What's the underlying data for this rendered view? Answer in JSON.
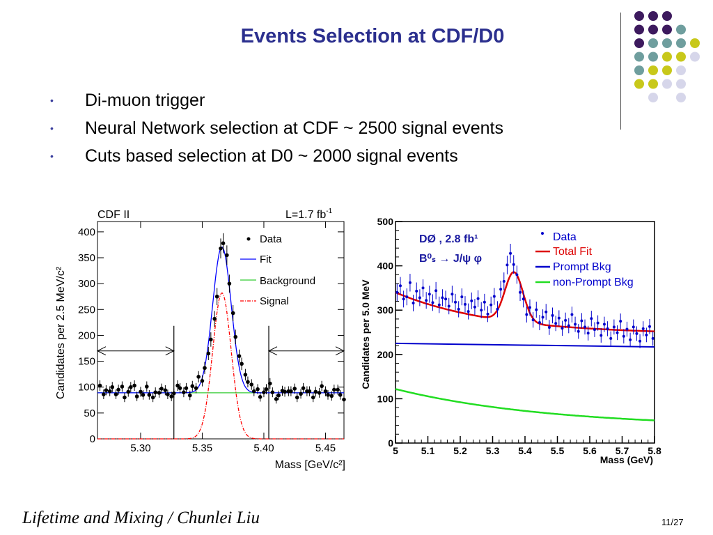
{
  "slide": {
    "title": "Events Selection at CDF/D0",
    "bullets": [
      "Di-muon trigger",
      "Neural Network selection at CDF  ~ 2500 signal events",
      "Cuts based selection at D0  ~  2000 signal events"
    ],
    "footer_left": "Lifetime and Mixing / Chunlei Liu",
    "footer_right": "11/27",
    "decor_colors": [
      "#3d1a5e",
      "#6f9e9e",
      "#c8c81a",
      "#d6d6ea"
    ]
  },
  "chart_data": [
    {
      "type": "scatter",
      "title_left": "CDF II",
      "title_right": "L=1.7 fb",
      "xlabel": "Mass [GeV/c²]",
      "ylabel": "Candidates per 2.5 MeV/c²",
      "xlim": [
        5.265,
        5.465
      ],
      "ylim": [
        0,
        420
      ],
      "xticks": [
        "5.30",
        "5.35",
        "5.40",
        "5.45"
      ],
      "yticks": [
        "0",
        "50",
        "100",
        "150",
        "200",
        "250",
        "300",
        "350",
        "400"
      ],
      "cut_lines_x": [
        5.327,
        5.404
      ],
      "legend": [
        "Data",
        "Fit",
        "Background",
        "Signal"
      ],
      "series": [
        {
          "name": "Data",
          "kind": "points",
          "x": [
            5.267,
            5.27,
            5.272,
            5.275,
            5.277,
            5.28,
            5.282,
            5.285,
            5.287,
            5.29,
            5.292,
            5.295,
            5.297,
            5.3,
            5.302,
            5.305,
            5.307,
            5.31,
            5.312,
            5.315,
            5.317,
            5.32,
            5.322,
            5.325,
            5.327,
            5.33,
            5.332,
            5.335,
            5.337,
            5.34,
            5.342,
            5.345,
            5.347,
            5.35,
            5.352,
            5.355,
            5.357,
            5.36,
            5.362,
            5.365,
            5.367,
            5.37,
            5.372,
            5.375,
            5.377,
            5.38,
            5.382,
            5.385,
            5.387,
            5.39,
            5.392,
            5.395,
            5.397,
            5.4,
            5.402,
            5.405,
            5.407,
            5.41,
            5.412,
            5.415,
            5.417,
            5.42,
            5.422,
            5.425,
            5.427,
            5.43,
            5.432,
            5.435,
            5.437,
            5.44,
            5.442,
            5.445,
            5.447,
            5.45,
            5.452,
            5.455,
            5.457,
            5.46,
            5.462,
            5.465
          ],
          "y": [
            103,
            86,
            94,
            92,
            100,
            86,
            95,
            101,
            80,
            91,
            100,
            103,
            82,
            91,
            85,
            101,
            85,
            80,
            90,
            89,
            97,
            94,
            86,
            82,
            88,
            103,
            98,
            90,
            98,
            84,
            102,
            98,
            120,
            112,
            137,
            165,
            192,
            232,
            275,
            368,
            378,
            355,
            300,
            243,
            197,
            160,
            145,
            124,
            110,
            105,
            92,
            96,
            81,
            90,
            96,
            107,
            90,
            77,
            84,
            93,
            91,
            92,
            92,
            97,
            80,
            87,
            98,
            92,
            92,
            80,
            91,
            89,
            102,
            92,
            85,
            83,
            95,
            95,
            85,
            76
          ]
        },
        {
          "name": "Fit",
          "kind": "line",
          "color": "#0000ff"
        },
        {
          "name": "Background",
          "kind": "line",
          "color": "#33cc33",
          "value": 89
        },
        {
          "name": "Signal",
          "kind": "dashdot",
          "color": "#ff0000",
          "peak": 282,
          "mean": 5.366,
          "sigma": 0.0075
        }
      ]
    },
    {
      "type": "scatter",
      "title": "DØ , 2.8 fb¹",
      "subtitle": "B⁰ₛ → J/ψ φ",
      "xlabel": "Mass  (GeV)",
      "ylabel": "Candidates per 5.0 MeV",
      "xlim": [
        5.0,
        5.8
      ],
      "ylim": [
        0,
        500
      ],
      "xticks": [
        "5",
        "5.1",
        "5.2",
        "5.3",
        "5.4",
        "5.5",
        "5.6",
        "5.7",
        "5.8"
      ],
      "yticks": [
        "0",
        "100",
        "200",
        "300",
        "400",
        "500"
      ],
      "legend": [
        "Data",
        "Total Fit",
        "Prompt Bkg",
        "non-Prompt Bkg"
      ],
      "series": [
        {
          "name": "Data",
          "kind": "points",
          "color": "#0000cc",
          "x": [
            5.005,
            5.015,
            5.025,
            5.035,
            5.045,
            5.055,
            5.065,
            5.075,
            5.085,
            5.095,
            5.105,
            5.115,
            5.125,
            5.135,
            5.145,
            5.155,
            5.165,
            5.175,
            5.185,
            5.195,
            5.205,
            5.215,
            5.225,
            5.235,
            5.245,
            5.255,
            5.265,
            5.275,
            5.285,
            5.295,
            5.305,
            5.315,
            5.325,
            5.335,
            5.345,
            5.355,
            5.365,
            5.375,
            5.385,
            5.395,
            5.405,
            5.415,
            5.425,
            5.435,
            5.445,
            5.455,
            5.465,
            5.475,
            5.485,
            5.495,
            5.505,
            5.515,
            5.525,
            5.535,
            5.545,
            5.555,
            5.565,
            5.575,
            5.585,
            5.595,
            5.605,
            5.615,
            5.625,
            5.635,
            5.645,
            5.655,
            5.665,
            5.675,
            5.685,
            5.695,
            5.705,
            5.715,
            5.725,
            5.735,
            5.745,
            5.755,
            5.765,
            5.775,
            5.785,
            5.795
          ],
          "y": [
            340,
            355,
            325,
            330,
            362,
            316,
            343,
            328,
            350,
            322,
            336,
            317,
            344,
            312,
            328,
            325,
            309,
            336,
            318,
            302,
            330,
            313,
            297,
            321,
            307,
            326,
            300,
            318,
            291,
            312,
            331,
            302,
            347,
            365,
            402,
            428,
            403,
            380,
            340,
            325,
            290,
            306,
            278,
            301,
            272,
            284,
            296,
            261,
            288,
            270,
            282,
            259,
            277,
            265,
            290,
            268,
            252,
            276,
            262,
            248,
            281,
            256,
            271,
            243,
            268,
            258,
            236,
            262,
            249,
            275,
            241,
            257,
            233,
            262,
            247,
            230,
            258,
            244,
            263,
            236
          ]
        },
        {
          "name": "Total Fit",
          "kind": "line",
          "color": "#dd0000"
        },
        {
          "name": "Prompt Bkg",
          "kind": "line",
          "color": "#0000cc",
          "start": 225,
          "end": 217
        },
        {
          "name": "non-Prompt Bkg",
          "kind": "line",
          "color": "#22dd22",
          "start": 122,
          "end": 35
        }
      ]
    }
  ]
}
